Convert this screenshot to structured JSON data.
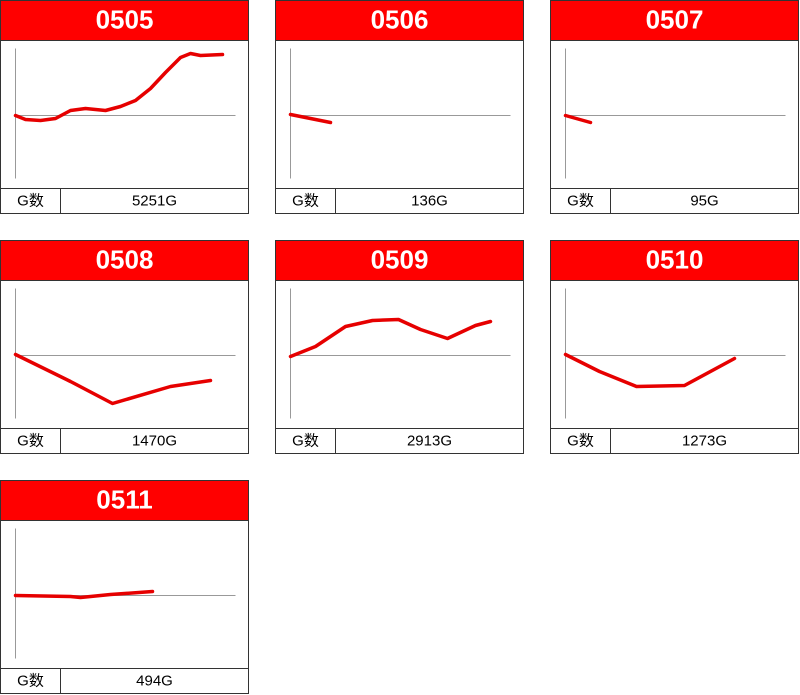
{
  "chart_data": [
    {
      "type": "line",
      "title": "0505",
      "stat_label": "G数",
      "stat_value": "5251G",
      "color": "#e60000",
      "xlim": [
        0,
        220
      ],
      "ylim": [
        -63,
        67
      ],
      "x": [
        0,
        10,
        25,
        40,
        55,
        70,
        90,
        105,
        120,
        135,
        150,
        165,
        175,
        185,
        207
      ],
      "values": [
        0,
        -4,
        -5,
        -3,
        5,
        7,
        5,
        9,
        15,
        27,
        43,
        58,
        62,
        60,
        61
      ]
    },
    {
      "type": "line",
      "title": "0506",
      "stat_label": "G数",
      "stat_value": "136G",
      "color": "#e60000",
      "xlim": [
        0,
        220
      ],
      "ylim": [
        -63,
        67
      ],
      "x": [
        0,
        40
      ],
      "values": [
        1,
        -7
      ]
    },
    {
      "type": "line",
      "title": "0507",
      "stat_label": "G数",
      "stat_value": "95G",
      "color": "#e60000",
      "xlim": [
        0,
        220
      ],
      "ylim": [
        -63,
        67
      ],
      "x": [
        0,
        25
      ],
      "values": [
        0,
        -7
      ]
    },
    {
      "type": "line",
      "title": "0508",
      "stat_label": "G数",
      "stat_value": "1470G",
      "color": "#e60000",
      "xlim": [
        0,
        220
      ],
      "ylim": [
        -63,
        67
      ],
      "x": [
        0,
        55,
        97,
        155,
        195
      ],
      "values": [
        1,
        -26,
        -48,
        -31,
        -25
      ]
    },
    {
      "type": "line",
      "title": "0509",
      "stat_label": "G数",
      "stat_value": "2913G",
      "color": "#e60000",
      "xlim": [
        0,
        220
      ],
      "ylim": [
        -63,
        67
      ],
      "x": [
        0,
        25,
        55,
        82,
        108,
        130,
        157,
        185,
        200
      ],
      "values": [
        -1,
        9,
        29,
        35,
        36,
        26,
        17,
        30,
        34
      ]
    },
    {
      "type": "line",
      "title": "0510",
      "stat_label": "G数",
      "stat_value": "1273G",
      "color": "#e60000",
      "xlim": [
        0,
        220
      ],
      "ylim": [
        -63,
        67
      ],
      "x": [
        0,
        34,
        71,
        119,
        169
      ],
      "values": [
        1,
        -16,
        -31,
        -30,
        -3
      ]
    },
    {
      "type": "line",
      "title": "0511",
      "stat_label": "G数",
      "stat_value": "494G",
      "color": "#e60000",
      "xlim": [
        0,
        220
      ],
      "ylim": [
        -63,
        67
      ],
      "x": [
        0,
        55,
        65,
        95,
        137
      ],
      "values": [
        0,
        -1,
        -2,
        1,
        4
      ]
    }
  ]
}
